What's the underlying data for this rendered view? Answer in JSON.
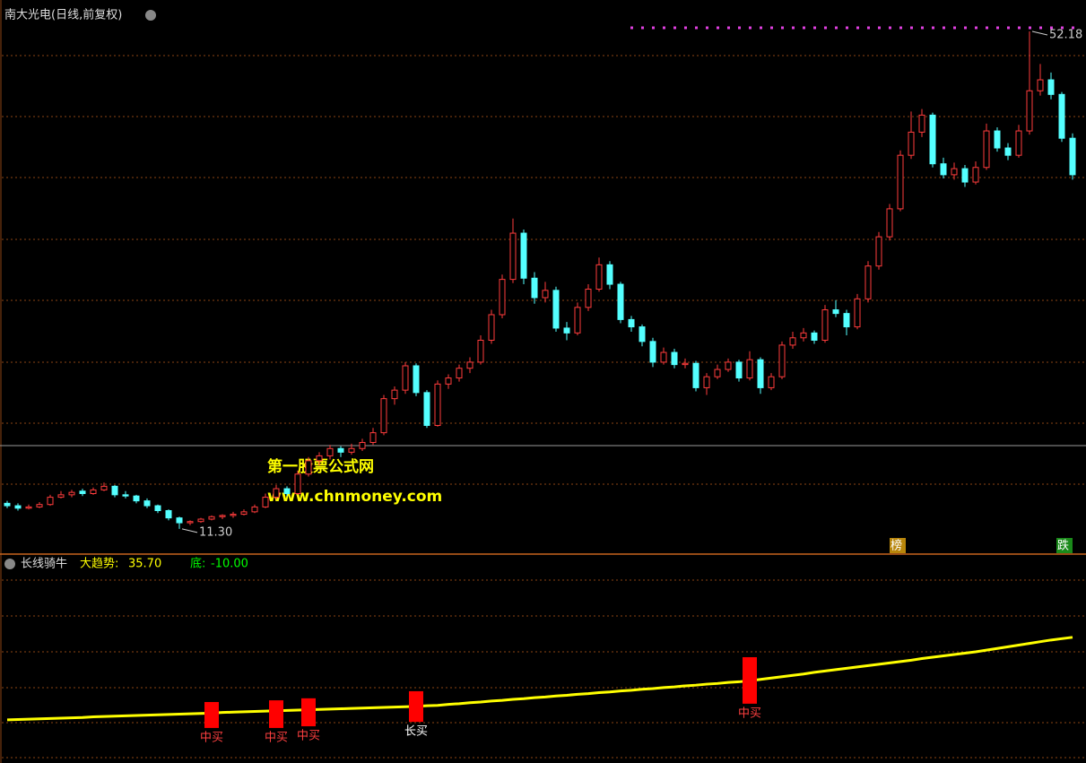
{
  "chart_data": [
    {
      "type": "candlestick",
      "title": "南大光电(日线,前复权)",
      "up_color": "#ff3c3c",
      "down_color": "#54ffff",
      "ylim": [
        9.3,
        54.76
      ],
      "annotations": [
        {
          "value": 52.18,
          "label": "52.18",
          "at": "high"
        },
        {
          "value": 11.3,
          "label": "11.30",
          "at": "low"
        }
      ],
      "ohlc": [
        [
          13.4,
          13.6,
          13.0,
          13.2
        ],
        [
          13.2,
          13.4,
          12.8,
          13.0
        ],
        [
          13.0,
          13.3,
          12.9,
          13.1
        ],
        [
          13.1,
          13.5,
          13.0,
          13.3
        ],
        [
          13.3,
          14.1,
          13.2,
          13.9
        ],
        [
          13.9,
          14.4,
          13.8,
          14.1
        ],
        [
          14.1,
          14.5,
          13.9,
          14.3
        ],
        [
          14.4,
          14.6,
          14.0,
          14.2
        ],
        [
          14.2,
          14.7,
          14.1,
          14.5
        ],
        [
          14.5,
          15.1,
          14.4,
          14.8
        ],
        [
          14.8,
          14.9,
          13.9,
          14.1
        ],
        [
          14.1,
          14.4,
          13.8,
          14.0
        ],
        [
          14.0,
          14.1,
          13.4,
          13.6
        ],
        [
          13.6,
          13.8,
          13.0,
          13.2
        ],
        [
          13.2,
          13.3,
          12.6,
          12.8
        ],
        [
          12.8,
          12.9,
          12.0,
          12.2
        ],
        [
          12.2,
          12.3,
          11.3,
          11.8
        ],
        [
          11.8,
          12.0,
          11.6,
          11.9
        ],
        [
          11.9,
          12.2,
          11.8,
          12.1
        ],
        [
          12.1,
          12.4,
          12.0,
          12.3
        ],
        [
          12.3,
          12.5,
          12.1,
          12.4
        ],
        [
          12.4,
          12.7,
          12.2,
          12.5
        ],
        [
          12.5,
          12.9,
          12.4,
          12.7
        ],
        [
          12.7,
          13.3,
          12.6,
          13.1
        ],
        [
          13.1,
          14.2,
          13.0,
          13.9
        ],
        [
          13.9,
          14.9,
          13.7,
          14.6
        ],
        [
          14.6,
          14.8,
          14.0,
          14.2
        ],
        [
          14.2,
          16.1,
          14.1,
          15.8
        ],
        [
          15.8,
          17.2,
          15.6,
          16.9
        ],
        [
          16.9,
          17.6,
          16.5,
          17.3
        ],
        [
          17.3,
          18.2,
          17.0,
          17.9
        ],
        [
          17.9,
          18.1,
          17.2,
          17.6
        ],
        [
          17.6,
          18.3,
          17.4,
          17.9
        ],
        [
          17.9,
          18.7,
          17.7,
          18.4
        ],
        [
          18.4,
          19.6,
          18.2,
          19.2
        ],
        [
          19.2,
          22.3,
          19.0,
          22.0
        ],
        [
          22.0,
          23.0,
          21.5,
          22.7
        ],
        [
          22.7,
          25.0,
          22.4,
          24.7
        ],
        [
          24.7,
          24.9,
          22.2,
          22.5
        ],
        [
          22.5,
          22.7,
          19.6,
          19.8
        ],
        [
          19.8,
          23.5,
          19.7,
          23.2
        ],
        [
          23.2,
          24.0,
          22.8,
          23.7
        ],
        [
          23.7,
          24.8,
          23.4,
          24.5
        ],
        [
          24.5,
          25.4,
          24.1,
          25.0
        ],
        [
          25.0,
          27.2,
          24.8,
          26.8
        ],
        [
          26.8,
          29.3,
          26.5,
          28.9
        ],
        [
          28.9,
          32.2,
          28.6,
          31.8
        ],
        [
          31.8,
          36.8,
          31.5,
          35.6
        ],
        [
          35.6,
          35.9,
          31.4,
          31.9
        ],
        [
          31.9,
          32.4,
          29.8,
          30.3
        ],
        [
          30.3,
          31.6,
          29.9,
          30.9
        ],
        [
          30.9,
          31.2,
          27.5,
          27.8
        ],
        [
          27.8,
          28.3,
          26.8,
          27.4
        ],
        [
          27.4,
          29.9,
          27.2,
          29.5
        ],
        [
          29.5,
          31.4,
          29.2,
          31.0
        ],
        [
          31.0,
          33.6,
          30.8,
          33.0
        ],
        [
          33.0,
          33.3,
          31.0,
          31.4
        ],
        [
          31.4,
          31.6,
          28.2,
          28.5
        ],
        [
          28.5,
          28.8,
          27.5,
          27.9
        ],
        [
          27.9,
          28.1,
          26.3,
          26.7
        ],
        [
          26.7,
          27.0,
          24.6,
          25.0
        ],
        [
          25.0,
          26.2,
          24.8,
          25.8
        ],
        [
          25.8,
          26.1,
          24.5,
          24.8
        ],
        [
          24.8,
          25.3,
          24.5,
          24.9
        ],
        [
          24.9,
          25.1,
          22.6,
          22.9
        ],
        [
          22.9,
          24.1,
          22.3,
          23.8
        ],
        [
          23.8,
          24.8,
          23.6,
          24.4
        ],
        [
          24.4,
          25.3,
          24.2,
          25.0
        ],
        [
          25.0,
          25.2,
          23.4,
          23.7
        ],
        [
          23.7,
          25.9,
          23.5,
          25.2
        ],
        [
          25.2,
          25.4,
          22.4,
          22.9
        ],
        [
          22.9,
          24.1,
          22.7,
          23.8
        ],
        [
          23.8,
          26.7,
          23.6,
          26.4
        ],
        [
          26.4,
          27.5,
          26.1,
          27.0
        ],
        [
          27.0,
          27.8,
          26.7,
          27.4
        ],
        [
          27.4,
          27.6,
          26.5,
          26.8
        ],
        [
          26.8,
          29.7,
          26.6,
          29.3
        ],
        [
          29.3,
          30.1,
          28.7,
          29.0
        ],
        [
          29.0,
          29.3,
          27.2,
          27.9
        ],
        [
          27.9,
          30.6,
          27.7,
          30.2
        ],
        [
          30.2,
          33.3,
          29.9,
          32.9
        ],
        [
          32.9,
          35.7,
          32.6,
          35.3
        ],
        [
          35.3,
          38.0,
          35.0,
          37.6
        ],
        [
          37.6,
          42.4,
          37.4,
          42.0
        ],
        [
          42.0,
          45.6,
          41.7,
          43.9
        ],
        [
          43.9,
          45.8,
          43.5,
          45.3
        ],
        [
          45.3,
          45.5,
          41.0,
          41.3
        ],
        [
          41.3,
          41.8,
          40.1,
          40.4
        ],
        [
          40.4,
          41.4,
          40.0,
          40.9
        ],
        [
          40.9,
          41.2,
          39.4,
          39.8
        ],
        [
          39.8,
          41.5,
          39.6,
          41.0
        ],
        [
          41.0,
          44.6,
          40.8,
          44.0
        ],
        [
          44.0,
          44.3,
          42.3,
          42.6
        ],
        [
          42.6,
          43.0,
          41.6,
          42.0
        ],
        [
          42.0,
          44.5,
          41.8,
          44.0
        ],
        [
          44.0,
          52.18,
          43.7,
          47.3
        ],
        [
          47.3,
          49.5,
          46.9,
          48.2
        ],
        [
          48.2,
          48.8,
          46.6,
          47.0
        ],
        [
          47.0,
          47.2,
          43.1,
          43.4
        ],
        [
          43.4,
          43.8,
          40.0,
          40.4
        ]
      ],
      "tags": [
        {
          "label": "榜",
          "color": "#b8860b"
        },
        {
          "label": "跌",
          "color": "#1a8a1a"
        }
      ]
    },
    {
      "type": "line",
      "title": "长线骑牛",
      "ylim": [
        0,
        58
      ],
      "series": [
        {
          "name": "大趋势:",
          "color": "#ffff00",
          "value_label": "35.70",
          "values": [
            11.2,
            11.3,
            11.4,
            11.5,
            11.6,
            11.7,
            11.8,
            11.9,
            12.1,
            12.2,
            12.3,
            12.4,
            12.5,
            12.6,
            12.7,
            12.8,
            12.9,
            13.0,
            13.1,
            13.2,
            13.4,
            13.5,
            13.6,
            13.7,
            13.8,
            13.9,
            14.0,
            14.1,
            14.2,
            14.3,
            14.4,
            14.5,
            14.6,
            14.7,
            14.8,
            14.9,
            15.0,
            15.1,
            15.2,
            15.4,
            15.5,
            15.8,
            16.0,
            16.3,
            16.5,
            16.8,
            17.0,
            17.3,
            17.5,
            17.8,
            18.0,
            18.3,
            18.5,
            18.8,
            19.0,
            19.3,
            19.5,
            19.8,
            20.0,
            20.3,
            20.5,
            20.8,
            21.0,
            21.3,
            21.5,
            21.8,
            22.0,
            22.3,
            22.5,
            22.8,
            23.2,
            23.6,
            24.0,
            24.4,
            24.8,
            25.3,
            25.7,
            26.1,
            26.5,
            26.9,
            27.3,
            27.7,
            28.1,
            28.5,
            28.9,
            29.4,
            29.8,
            30.2,
            30.6,
            31.0,
            31.4,
            31.9,
            32.4,
            32.9,
            33.4,
            33.9,
            34.4,
            34.9,
            35.3,
            35.7
          ]
        }
      ],
      "extra_legend": [
        {
          "name": "底:",
          "label": "-10.00",
          "color": "#00ff00"
        }
      ],
      "signals": [
        {
          "index": 19,
          "top": 16.5,
          "bottom": 8.8,
          "label": "中买",
          "label_color": "#ff4040"
        },
        {
          "index": 25,
          "top": 17.0,
          "bottom": 8.8,
          "label": "中买",
          "label_color": "#ff4040"
        },
        {
          "index": 28,
          "top": 17.6,
          "bottom": 9.3,
          "label": "中买",
          "label_color": "#ff4040"
        },
        {
          "index": 38,
          "top": 19.7,
          "bottom": 10.6,
          "label": "长买",
          "label_color": "#ffffff"
        },
        {
          "index": 69,
          "top": 29.8,
          "bottom": 16.0,
          "label": "中买",
          "label_color": "#ff4040"
        }
      ]
    }
  ],
  "watermark": [
    "第一股票公式网",
    "www.chnmoney.com"
  ]
}
